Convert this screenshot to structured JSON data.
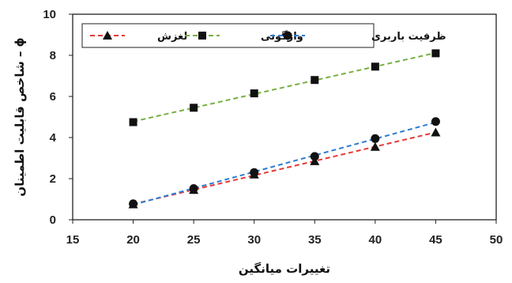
{
  "chart_data": {
    "type": "line",
    "x": [
      20,
      25,
      30,
      35,
      40,
      45
    ],
    "xlim": [
      15,
      50
    ],
    "ylim": [
      0,
      10
    ],
    "x_ticks": [
      15,
      20,
      25,
      30,
      35,
      40,
      45,
      50
    ],
    "y_ticks": [
      0,
      2,
      4,
      6,
      8,
      10
    ],
    "xlabel": "تغییرات میانگین",
    "ylabel": "ϕ – شاخص قابلیت اطمینان",
    "legend_position": "top-left",
    "grid": false,
    "series": [
      {
        "name": "لغزش",
        "values": [
          0.75,
          1.45,
          2.2,
          2.85,
          3.55,
          4.25
        ],
        "color": "#e53935",
        "marker": "triangle"
      },
      {
        "name": "واژگونی",
        "values": [
          4.75,
          5.45,
          6.15,
          6.8,
          7.45,
          8.1
        ],
        "color": "#76b043",
        "marker": "square"
      },
      {
        "name": "ظرفیت باربری",
        "values": [
          0.78,
          1.52,
          2.3,
          3.08,
          3.95,
          4.78
        ],
        "color": "#2e7dd1",
        "marker": "circle"
      }
    ]
  }
}
